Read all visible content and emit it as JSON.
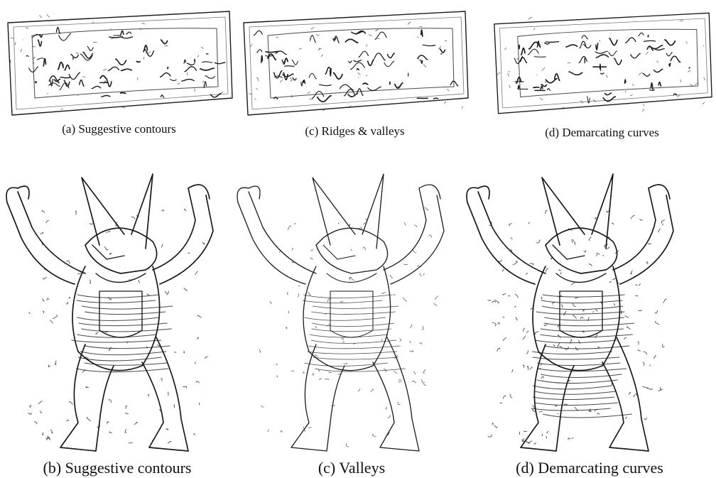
{
  "figure": {
    "top_row": [
      {
        "label": "(a) Suggestive contours"
      },
      {
        "label": "(c) Ridges & valleys"
      },
      {
        "label": "(d) Demarcating curves"
      }
    ],
    "bottom_row": [
      {
        "label": "(b) Suggestive contours"
      },
      {
        "label": "(c) Valleys"
      },
      {
        "label": "(d) Demarcating curves"
      }
    ]
  },
  "colors": {
    "line": "#1a1a1a",
    "background": "#ffffff"
  }
}
